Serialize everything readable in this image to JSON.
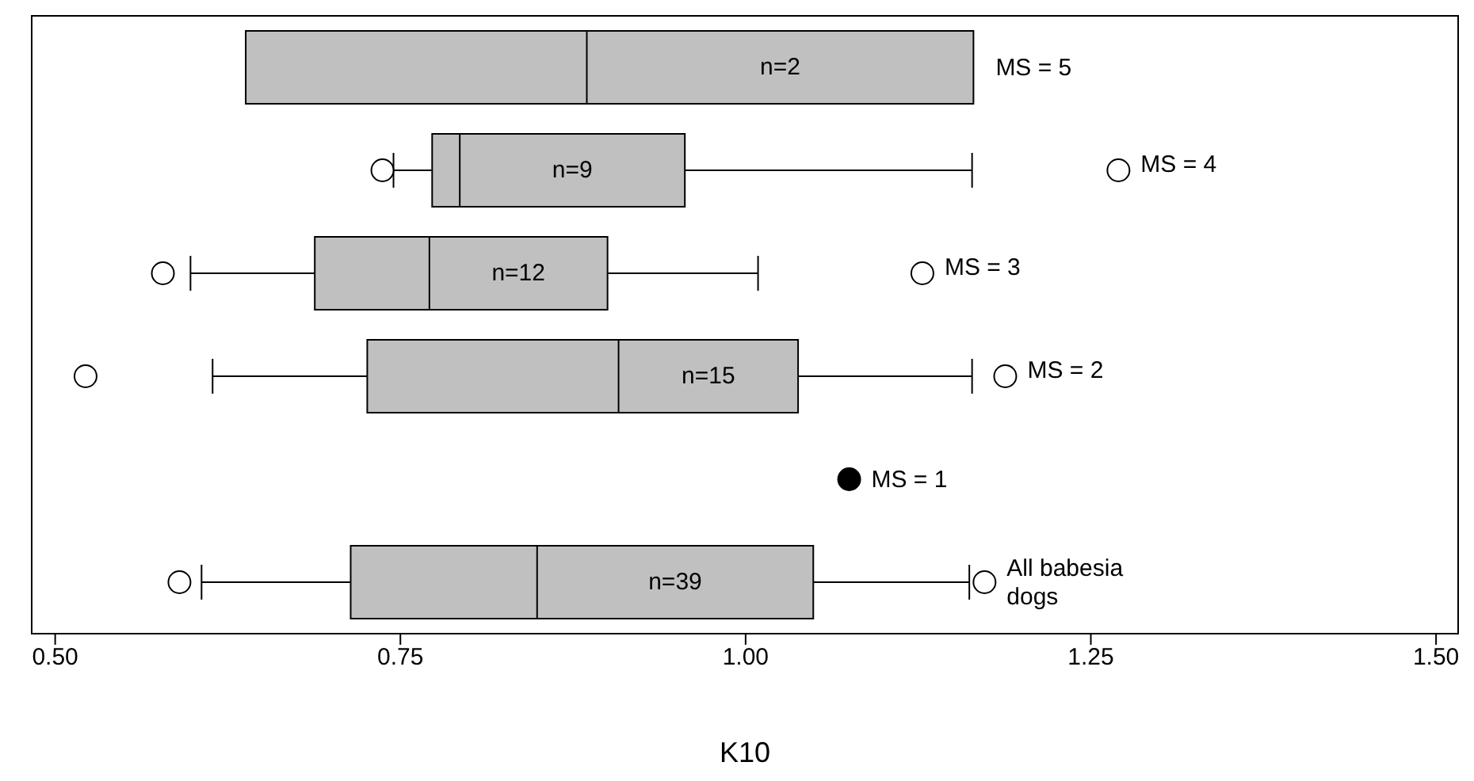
{
  "chart_data": {
    "type": "box",
    "orientation": "horizontal",
    "categories": [
      "MS = 5",
      "MS = 4",
      "MS = 3",
      "MS = 2",
      "MS = 1",
      "All babesia dogs"
    ],
    "xlabel": "K10",
    "xlim": [
      0.483,
      1.516
    ],
    "xticks": [
      {
        "value": 0.5,
        "label": "0.50"
      },
      {
        "value": 0.75,
        "label": "0.75"
      },
      {
        "value": 1.0,
        "label": "1.00"
      },
      {
        "value": 1.25,
        "label": "1.25"
      },
      {
        "value": 1.5,
        "label": "1.50"
      }
    ],
    "series": [
      {
        "color": "#c0c0c0",
        "boxes": [
          {
            "low": 0.638,
            "q1": 0.638,
            "median": 0.885,
            "q3": 1.165,
            "high": 1.165
          },
          {
            "low": 0.745,
            "q1": 0.773,
            "median": 0.793,
            "q3": 0.956,
            "high": 1.164,
            "outliers": [
              0.737,
              1.27
            ]
          },
          {
            "low": 0.598,
            "q1": 0.688,
            "median": 0.771,
            "q3": 0.9,
            "high": 1.009,
            "outliers": [
              0.578,
              1.128
            ]
          },
          {
            "low": 0.614,
            "q1": 0.726,
            "median": 0.908,
            "q3": 1.038,
            "high": 1.164,
            "outliers": [
              0.522,
              1.188
            ]
          },
          null,
          {
            "low": 0.606,
            "q1": 0.714,
            "median": 0.849,
            "q3": 1.049,
            "high": 1.162,
            "outliers": [
              0.59,
              1.173
            ]
          }
        ]
      },
      {
        "type": "scatter",
        "color": "#000000",
        "x": [
          "MS = 1"
        ],
        "values": [
          1.075
        ]
      }
    ],
    "annotations": [
      "n=2",
      "n=9",
      "n=12",
      "n=15",
      "n=39"
    ]
  }
}
